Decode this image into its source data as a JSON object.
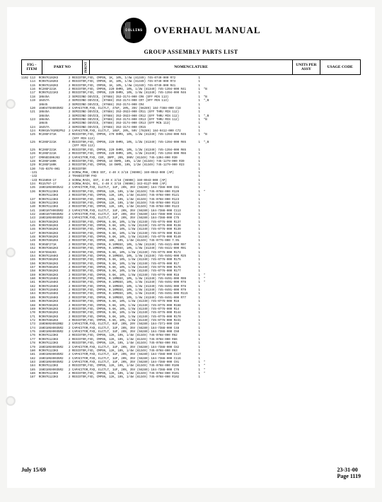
{
  "header": {
    "brand": "COLLINS",
    "title": "OVERHAUL MANUAL",
    "subtitle": "GROUP ASSEMBLY PARTS LIST"
  },
  "columns": {
    "fig": "FIG -\nITEM",
    "part": "PART NO",
    "indent": "INDENT",
    "nomenclature": "NOMENCLATURE",
    "units": "UNITS\nPER\nASSY",
    "usage": "USAGE\nCODE"
  },
  "footer": {
    "date": "July 15/69",
    "section": "23-31-00",
    "page": "Page 1119"
  },
  "fig_prefix": "1102",
  "rows": [
    {
      "item": "113",
      "part": "RCR07G102KS",
      "ind": "2",
      "nom": "RESISTOR,FXD, CMPSN, 1K, 10%, 1/4W (81349) 745-0749-000 R72",
      "u": "1",
      "c": ""
    },
    {
      "item": "114",
      "part": "RCR07G102KS",
      "ind": "2",
      "nom": "RESISTOR,FXD, CMPSN, 1K, 10%, 1/4W (81349) 745-0749-000 R73",
      "u": "1",
      "c": ""
    },
    {
      "item": "115",
      "part": "RCR07G102KS",
      "ind": "2",
      "nom": "RESISTOR,FXD, CMPSN, 1K, 10%, 1/4W (81349) 745-0749-000 R41",
      "u": "1",
      "c": ""
    },
    {
      "item": "116",
      "part": "RC20GF221K",
      "ind": "2",
      "nom": "RESISTOR,FXD, CMPSN, 220 OHMS, 10%, 1/2W (81349) 745-1394-000 R41",
      "u": "1",
      "c": "*B"
    },
    {
      "item": "117",
      "part": "RCR07G221KS",
      "ind": "2",
      "nom": "RESISTOR,FXD, CMPSN, 220 OHMS, 10%, 1/4W (81349) 745-1394-000 R46",
      "u": "1",
      "c": ""
    },
    {
      "item": "118",
      "part": "1N645A",
      "ind": "2",
      "nom": "SEMICOND DEVICE, (07688) 353-3174-000 CR6 (EFF MCN 113)",
      "u": "1",
      "c": "*B"
    },
    {
      "item": "119",
      "part": "1N457A",
      "ind": "2",
      "nom": "SEMICOND DEVICE, (07688) 353-3174-000 CR7 (EFF MCN 113)",
      "u": "1",
      "c": "*,B"
    },
    {
      "item": "",
      "part": "1N645",
      "ind": "2",
      "nom": "SEMICOND DEVICE, (07688) 353-3174-000 CR4",
      "u": "1",
      "c": ""
    },
    {
      "item": "120",
      "part": "150D475X0035R2",
      "ind": "2",
      "nom": "CAPACITOR,FXD, ELCTLT, 47UF, 20%, 35V (56289) 184-7388-000 C18",
      "u": "1",
      "c": ""
    },
    {
      "item": "121",
      "part": "1N645A",
      "ind": "2",
      "nom": "SEMICOND DEVICE, (07688) 353-3923-000 CR11 (EFF THRU MCN 112)",
      "u": "1",
      "c": ""
    },
    {
      "item": "",
      "part": "1N645A",
      "ind": "2",
      "nom": "SEMICOND DEVICE, (07688) 353-3923-000 CR12 (EFF THRU MCN 112)",
      "u": "1",
      "c": "*,B"
    },
    {
      "item": "123",
      "part": "1N645A",
      "ind": "2",
      "nom": "SEMICOND DEVICE, (07688) 353-3174-000 CR13 (EFF THRU MCN 112)",
      "u": "1",
      "c": "*B"
    },
    {
      "item": "",
      "part": "1N645",
      "ind": "2",
      "nom": "SEMICOND DEVICE, (07688) 353-3174-000 CR13 (EFF MCN 113)",
      "u": "1",
      "c": ""
    },
    {
      "item": "124",
      "part": "1N457A",
      "ind": "2",
      "nom": "SEMICOND DEVICE, (07688) 353-3174-000 CR15",
      "u": "1",
      "c": ""
    },
    {
      "item": "124",
      "part": "M39010/01R02P52",
      "ind": "2",
      "nom": "CAPACITOR,FXD, ELCTLT, 10UF, 20%, 50V (78289) 184-9412-000 C72",
      "u": "1",
      "c": ""
    },
    {
      "item": "125",
      "part": "RC20GF471K",
      "ind": "2",
      "nom": "RESISTOR,FXD, CMPSN, 470 OHMS, 10%, 1/2W (81349) 745-1394-000 R45",
      "u": "1",
      "c": "*B"
    },
    {
      "item": "",
      "part": "",
      "ind": "",
      "nom": "(EFF MCN 113)",
      "u": "",
      "c": ""
    },
    {
      "item": "125",
      "part": "RC20GF221K",
      "ind": "2",
      "nom": "RESISTOR,FXD, CMPSN, 220 OHMS, 10%, 1/2W (81349) 745-1394-000 R65",
      "u": "1",
      "c": "*,B"
    },
    {
      "item": "",
      "part": "",
      "ind": "",
      "nom": "(EFF MCN 113)",
      "u": "",
      "c": ""
    },
    {
      "item": "125",
      "part": "RC20GF221K",
      "ind": "2",
      "nom": "RESISTOR,FXD, CMPSN, 220 OHMS, 10%, 1/2W (81349) 745-1394-000 R65",
      "u": "1",
      "c": ""
    },
    {
      "item": "126",
      "part": "RC20GF221K",
      "ind": "2",
      "nom": "RESISTOR,FXD, CMPSN, 220 OHMS, 10%, 1/2W (81349) 745-1394-000 R66",
      "u": "1",
      "c": ""
    },
    {
      "item": "127",
      "part": "CM05ED300J03",
      "ind": "2",
      "nom": "CAPACITOR,FXD, CER, 30PF, 20%, 300V (81349) 745-1394-000 R30",
      "u": "1",
      "c": ""
    },
    {
      "item": "128",
      "part": "RC20GF180K",
      "ind": "2",
      "nom": "RESISTOR,FXD, CMPSN, 18 OHMS, 10%, 1/2W (81349) 745-1279-000 R30",
      "u": "1",
      "c": ""
    },
    {
      "item": "129",
      "part": "RC20GF180K",
      "ind": "2",
      "nom": "RESISTOR,FXD, CMPSN, 18 OHMS, 10%, 1/2W (81349) 745-1279-000 R23",
      "u": "1",
      "c": ""
    },
    {
      "item": "130",
      "part": "745-0378-001",
      "ind": "2",
      "nom": "RESISTOR",
      "u": "1",
      "c": ""
    },
    {
      "item": "-131",
      "part": "",
      "ind": "2",
      "nom": "SCREW,PNH, CRES SST, 4-40 X 3/16 (96906) 340-0043-000 (AP)",
      "u": "1",
      "c": ""
    },
    {
      "item": "-132",
      "part": "",
      "ind": "2",
      "nom": "TRANSISTOR PAD",
      "u": "1",
      "c": ""
    },
    {
      "item": "-133",
      "part": "MS15059-17",
      "ind": "2",
      "nom": "SCREW,MACH, SST, 4-40 X 3/16 (96906) 340-0043-000 (AP)",
      "u": "1",
      "c": ""
    },
    {
      "item": "134",
      "part": "MS15797-17",
      "ind": "2",
      "nom": "SCREW,MACH, NYL, 4-40 X 3/16 (96906) 343-0127-000 (AP)",
      "u": "1",
      "c": ""
    },
    {
      "item": "135",
      "part": "150D105X0035A2",
      "ind": "2",
      "nom": "CAPACITOR,FXD, ELCTLT, 1UF, 20%, 35V (56289) 184-7388-000 C81",
      "u": "1",
      "c": ""
    },
    {
      "item": "136",
      "part": "RCR07G123KS",
      "ind": "2",
      "nom": "RESISTOR,FXD, CMPSN, 12K, 10%, 1/4W (81349) 745-0768-000 R120",
      "u": "1",
      "c": "*"
    },
    {
      "item": "",
      "part": "RCR07G123KS",
      "ind": "2",
      "nom": "RESISTOR,FXD, CMPSN, 12K, 10%, 1/4W (81349) 745-0768-000 R121",
      "u": "1",
      "c": ""
    },
    {
      "item": "137",
      "part": "RCR07G123KS",
      "ind": "2",
      "nom": "RESISTOR,FXD, CMPSN, 12K, 10%, 1/4W (81349) 745-0768-000 R123",
      "u": "1",
      "c": ""
    },
    {
      "item": "138",
      "part": "RCR07G123KS",
      "ind": "2",
      "nom": "RESISTOR,FXD, CMPSN, 12K, 10%, 1/4W (81349) 745-0768-000 R123",
      "u": "1",
      "c": ""
    },
    {
      "item": "140",
      "part": "RCR07G123KS",
      "ind": "2",
      "nom": "RESISTOR,FXD, CMPSN, 12K, 10%, 1/4W (81349) 745-0768-000 R123",
      "u": "1",
      "c": ""
    },
    {
      "item": "141",
      "part": "150D107X0035R2",
      "ind": "2",
      "nom": "CAPACITOR,FXD, ELCTLT, 1UF, 20%, 35V (56289) 184-7388-000 C113",
      "u": "1",
      "c": ""
    },
    {
      "item": "142",
      "part": "150D107X0035R2",
      "ind": "2",
      "nom": "CAPACITOR,FXD, ELCTLT, 1UF, 20%, 35V (56289) 184-7388-000 C111",
      "u": "1",
      "c": ""
    },
    {
      "item": "143",
      "part": "150D105X0035R2",
      "ind": "2",
      "nom": "CAPACITOR,FXD, ELCTLT, 1UF, 20%, 35V (56289) 184-7388-000 C75",
      "u": "1",
      "c": ""
    },
    {
      "item": "144",
      "part": "RCR07G562KS",
      "ind": "2",
      "nom": "RESISTOR,FXD, CMPSN, 5.6K, 10%, 1/4W (81349) 745-0776-000 R137",
      "u": "1",
      "c": ""
    },
    {
      "item": "145",
      "part": "RCR07G562KS",
      "ind": "2",
      "nom": "RESISTOR,FXD, CMPSN, 5.6K, 10%, 1/4W (81349) 745-0776-000 R138",
      "u": "1",
      "c": ""
    },
    {
      "item": "146",
      "part": "RCR07G562KS",
      "ind": "2",
      "nom": "RESISTOR,FXD, CMPSN, 5.6K, 10%, 1/4W (81349) 745-0776-000 R139",
      "u": "1",
      "c": ""
    },
    {
      "item": "147",
      "part": "RCR07G562KS",
      "ind": "2",
      "nom": "RESISTOR,FXD, CMPSN, 5.6K, 10%, 1/4W (81349) 745-0776-000 R134",
      "u": "1",
      "c": ""
    },
    {
      "item": "148",
      "part": "RCR07G562KS",
      "ind": "2",
      "nom": "RESISTOR,FXD, CMPSN, 5.6K, 10%, 1/4W (81349) 745-0776-000 R140",
      "u": "1",
      "c": ""
    },
    {
      "item": "149",
      "part": "RCR07G562KS",
      "ind": "2",
      "nom": "RESISTOR,FXD, CMPSN, 10K, 10%, 1/4W (81349) 745-0776-000 7.5%",
      "u": "1",
      "c": ""
    },
    {
      "item": "151",
      "part": "RC05GF271K",
      "ind": "2",
      "nom": "RESISTOR,FXD, CMPSN, 0.10MEGO, 10%, 1/8W (81349) 745-0421-000 R97",
      "u": "1",
      "c": ""
    },
    {
      "item": "152",
      "part": "RCR07G562KS",
      "ind": "2",
      "nom": "RESISTOR,FXD, CMPSN, 0.10MEGO, 10%, 1/4W (81349) 745-0421-000 R91",
      "u": "1",
      "c": ""
    },
    {
      "item": "153",
      "part": "RC07G562KS",
      "ind": "2",
      "nom": "RESISTOR,FXD, CMPSN, 5.6K, 10%, 1/4W (81349) 745-0776-000 R174",
      "u": "1",
      "c": ""
    },
    {
      "item": "154",
      "part": "RCR07G104KS",
      "ind": "2",
      "nom": "RESISTOR,FXD, CMPSN, 0.10MEGO, 10%, 1/4W (81349) 745-0491-000 R25",
      "u": "1",
      "c": ""
    },
    {
      "item": "155",
      "part": "RCR07G562KS",
      "ind": "2",
      "nom": "RESISTOR,FXD, CMPSN, 5.6K, 10%, 1/4W (81349) 745-0776-000 R175",
      "u": "1",
      "c": ""
    },
    {
      "item": "156",
      "part": "RCR07G562KS",
      "ind": "2",
      "nom": "RESISTOR,FXD, CMPSN, 5.6K, 10%, 1/4W (81349) 745-0776-000 R17",
      "u": "1",
      "c": ""
    },
    {
      "item": "157",
      "part": "RCR07G562KS",
      "ind": "2",
      "nom": "RESISTOR,FXD, CMPSN, 5.6K, 10%, 1/4W (81349) 745-0776-000 R176",
      "u": "1",
      "c": ""
    },
    {
      "item": "158",
      "part": "RCR07G562KS",
      "ind": "2",
      "nom": "RESISTOR,FXD, CMPSN, 5.6K, 10%, 1/4W (81349) 745-0776-000 R177",
      "u": "1",
      "c": ""
    },
    {
      "item": "159",
      "part": "RCR07G562KS",
      "ind": "2",
      "nom": "RESISTOR,FXD, CMPSN, 5.6K, 10%, 1/4W (81349) 745-0776-000 R18",
      "u": "1",
      "c": "*"
    },
    {
      "item": "160",
      "part": "RCR07G104KS",
      "ind": "2",
      "nom": "RESISTOR,FXD, CMPSN, 0.10MEGO, 10%, 1/4W (81349) 745-0491-000 R99",
      "u": "1",
      "c": "*"
    },
    {
      "item": "161",
      "part": "RCR07G104KS",
      "ind": "2",
      "nom": "RESISTOR,FXD, CMPSN, 0.10MEGO, 10%, 1/4W (81349) 745-0491-000 R78",
      "u": "1",
      "c": "*"
    },
    {
      "item": "162",
      "part": "RCR07G104KS",
      "ind": "2",
      "nom": "RESISTOR,FXD, CMPSN, 0.10MEGO, 10%, 1/4W (81349) 745-0491-000 R78",
      "u": "1",
      "c": ""
    },
    {
      "item": "163",
      "part": "RCR07G104KS",
      "ind": "2",
      "nom": "RESISTOR,FXD, CMPSN, 0.10MEGO, 10%, 1/4W (81349) 745-0491-000 R79",
      "u": "1",
      "c": ""
    },
    {
      "item": "164",
      "part": "RCR07G104KS",
      "ind": "2",
      "nom": "RESISTOR,FXD, CMPSN, 0.10MEGO, 10%, 1/4W (81349) 745-0491-000 R115",
      "u": "1",
      "c": ""
    },
    {
      "item": "165",
      "part": "RCR07G104KS",
      "ind": "2",
      "nom": "RESISTOR,FXD, CMPSN, 0.10MEGO, 10%, 1/4W (81349) 745-0491-000 R77",
      "u": "1",
      "c": ""
    },
    {
      "item": "166",
      "part": "RCR07G562KS",
      "ind": "2",
      "nom": "RESISTOR,FXD, CMPSN, 5.6K, 10%, 1/4W (81349) 745-0776-000 R16",
      "u": "1",
      "c": ""
    },
    {
      "item": "168",
      "part": "RCR07G562KS",
      "ind": "2",
      "nom": "RESISTOR,FXD, CMPSN, 5.6K, 10%, 1/4W (81349) 745-0776-000 R168",
      "u": "1",
      "c": ""
    },
    {
      "item": "169",
      "part": "RCR07G562KS",
      "ind": "2",
      "nom": "RESISTOR,FXD, CMPSN, 5.6K, 10%, 1/4W (81349) 745-0776-000 R14",
      "u": "1",
      "c": ""
    },
    {
      "item": "170",
      "part": "RCR07G562KS",
      "ind": "2",
      "nom": "RESISTOR,FXD, CMPSN, 5.6K, 10%, 1/4W (81349) 745-0776-000 R144",
      "u": "1",
      "c": ""
    },
    {
      "item": "171",
      "part": "RCR07G562KS",
      "ind": "2",
      "nom": "RESISTOR,FXD, CMPSN, 5.6K, 10%, 1/4W (81349) 745-0776-000 R170",
      "u": "1",
      "c": ""
    },
    {
      "item": "172",
      "part": "RCR07G562KS",
      "ind": "2",
      "nom": "RESISTOR,FXD, CMPSN, 5.6K, 10%, 1/4W (81349) 745-0776-000 R231",
      "u": "1",
      "c": ""
    },
    {
      "item": "173",
      "part": "150D605X0020B2",
      "ind": "2",
      "nom": "CAPACITOR,FXD, ELCTLT, 6UF, 20%, 20V (56289) 184-7371-000 C69",
      "u": "1",
      "c": ""
    },
    {
      "item": "174",
      "part": "150D105X0035R2",
      "ind": "2",
      "nom": "CAPACITOR,FXD, ELCTLT, 1UF, 20%, 35V (56289) 184-7388-000 C48",
      "u": "1",
      "c": ""
    },
    {
      "item": "175",
      "part": "150D105X0035R2",
      "ind": "2",
      "nom": "CAPACITOR,FXD, ELCTLT, 1UF, 20%, 35V (56289) 184-7388-000 C50",
      "u": "1",
      "c": ""
    },
    {
      "item": "176",
      "part": "RCR07G123KS",
      "ind": "2",
      "nom": "RESISTOR,FXD, CMPSN, 12K, 10%, 1/4W (81349) 745-0768-000 R62",
      "u": "1",
      "c": ""
    },
    {
      "item": "177",
      "part": "RCR07G123KS",
      "ind": "2",
      "nom": "RESISTOR,FXD, CMPSN, 12K, 10%, 1/4W (81349) 745-0768-000 R86",
      "u": "1",
      "c": ""
    },
    {
      "item": "178",
      "part": "RCR07G123KS",
      "ind": "2",
      "nom": "RESISTOR,FXD, CMPSN, 12K, 10%, 1/4W (81349) 745-0768-000 R81",
      "u": "1",
      "c": ""
    },
    {
      "item": "179",
      "part": "150D105X0035R2",
      "ind": "2",
      "nom": "CAPACITOR,FXD, ELCTLT, 1UF, 20%, 35V (56289) 184-7388-000 C82",
      "u": "1",
      "c": ""
    },
    {
      "item": "180",
      "part": "RCR07G123KS",
      "ind": "2",
      "nom": "RESISTOR,FXD, CMPSN, 12K, 10%, 1/4W (81349) 745-0768-000 R63",
      "u": "1",
      "c": ""
    },
    {
      "item": "181",
      "part": "150D105X0035R2",
      "ind": "2",
      "nom": "CAPACITOR,FXD, ELCTLT, 1UF, 20%, 35V (56289) 184-7388-000 C117",
      "u": "1",
      "c": ""
    },
    {
      "item": "182",
      "part": "150D105X0035R2",
      "ind": "2",
      "nom": "CAPACITOR,FXD, ELCTLT, 1UF, 20%, 35V (56289) 184-7388-000 C116",
      "u": "1",
      "c": ""
    },
    {
      "item": "183",
      "part": "150D105X0035R2",
      "ind": "2",
      "nom": "CAPACITOR,FXD, ELCTLT, 1UF, 20%, 35V (56289) 184-7388-000 C91",
      "u": "1",
      "c": "*"
    },
    {
      "item": "184",
      "part": "RCR07G123KS",
      "ind": "2",
      "nom": "RESISTOR,FXD, CMPSN, 12K, 10%, 1/4W (81349) 745-0768-000 R106",
      "u": "1",
      "c": "*"
    },
    {
      "item": "185",
      "part": "150D105X0035R2",
      "ind": "2",
      "nom": "CAPACITOR,FXD, ELCTLT, 1UF, 20%, 35V (56289) 184-7388-000 C76",
      "u": "1",
      "c": "*"
    },
    {
      "item": "186",
      "part": "RCR07G123KS",
      "ind": "2",
      "nom": "RESISTOR,FXD, CMPSN, 12K, 10%, 1/4W (81349) 745-0768-000 R101",
      "u": "1",
      "c": "*"
    },
    {
      "item": "187",
      "part": "RCR07G123KS",
      "ind": "2",
      "nom": "RESISTOR,FXD, CMPSN, 12K, 10%, 1/4W (81349) 745-0768-000 R102",
      "u": "1",
      "c": ""
    }
  ]
}
